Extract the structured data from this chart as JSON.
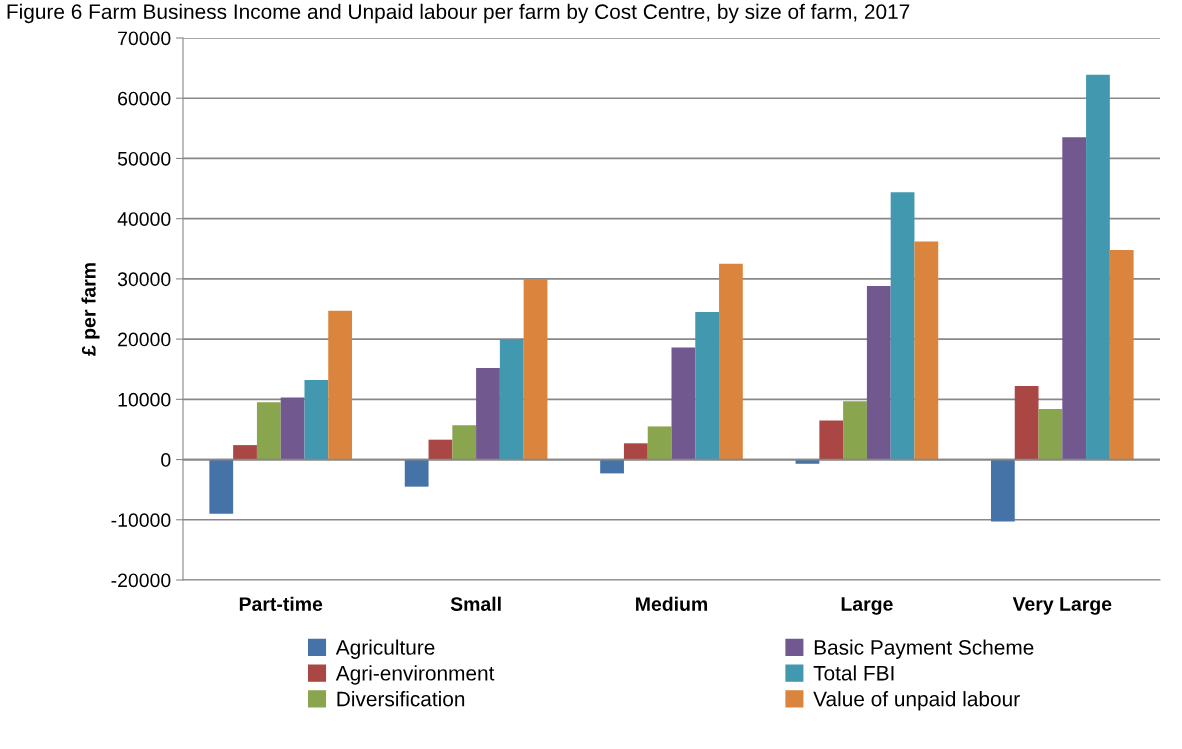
{
  "chart_data": {
    "type": "bar",
    "title": "Figure 6 Farm Business Income and Unpaid labour per farm by Cost Centre, by size of farm, 2017",
    "ylabel": "£ per farm",
    "categories": [
      "Part-time",
      "Small",
      "Medium",
      "Large",
      "Very Large"
    ],
    "series": [
      {
        "name": "Agriculture",
        "color": "#4572a7",
        "values": [
          -9000,
          -4500,
          -2300,
          -700,
          -10300
        ]
      },
      {
        "name": "Agri-environment",
        "color": "#aa4643",
        "values": [
          2400,
          3300,
          2700,
          6500,
          12200
        ]
      },
      {
        "name": "Diversification",
        "color": "#89a54e",
        "values": [
          9500,
          5700,
          5500,
          9700,
          8400
        ]
      },
      {
        "name": "Basic Payment Scheme",
        "color": "#71588f",
        "values": [
          10300,
          15200,
          18600,
          28800,
          53500
        ]
      },
      {
        "name": "Total FBI",
        "color": "#4198af",
        "values": [
          13200,
          20000,
          24500,
          44400,
          63900
        ]
      },
      {
        "name": "Value of unpaid labour",
        "color": "#db843d",
        "values": [
          24700,
          30000,
          32500,
          36200,
          34800
        ]
      }
    ],
    "ylim": [
      -20000,
      70000
    ],
    "yticks": [
      -20000,
      -10000,
      0,
      10000,
      20000,
      30000,
      40000,
      50000,
      60000,
      70000
    ],
    "grid": "y",
    "legend": "bottom"
  }
}
